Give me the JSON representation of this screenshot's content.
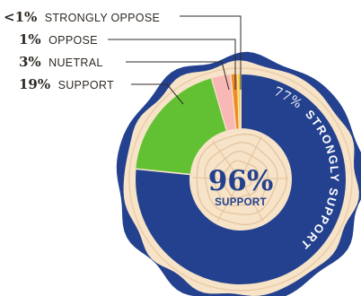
{
  "chart_data": {
    "type": "pie",
    "style": "donut",
    "categories": [
      "Strongly support",
      "Support",
      "Nuetral",
      "Oppose",
      "Strongly oppose"
    ],
    "values": [
      77,
      19,
      3,
      1,
      0.5
    ],
    "labels": [
      {
        "pct": "77%",
        "name": "STRONGLY SUPPORT"
      },
      {
        "pct": "19%",
        "name": "SUPPORT"
      },
      {
        "pct": "3%",
        "name": "NUETRAL"
      },
      {
        "pct": "1%",
        "name": "OPPOSE"
      },
      {
        "pct": "<1%",
        "name": "STRONGLY OPPOSE"
      }
    ],
    "colors": [
      "#23418e",
      "#62c132",
      "#f7b8b6",
      "#f08a24",
      "#f3d23a"
    ],
    "center": {
      "value": "96%",
      "label": "SUPPORT"
    },
    "legend": "callouts-left"
  },
  "theme": {
    "wood_light": "#f6e3c8",
    "wood_ring": "#e9c9a4",
    "bark": "#23418e",
    "text_dark": "#2f2a24"
  }
}
